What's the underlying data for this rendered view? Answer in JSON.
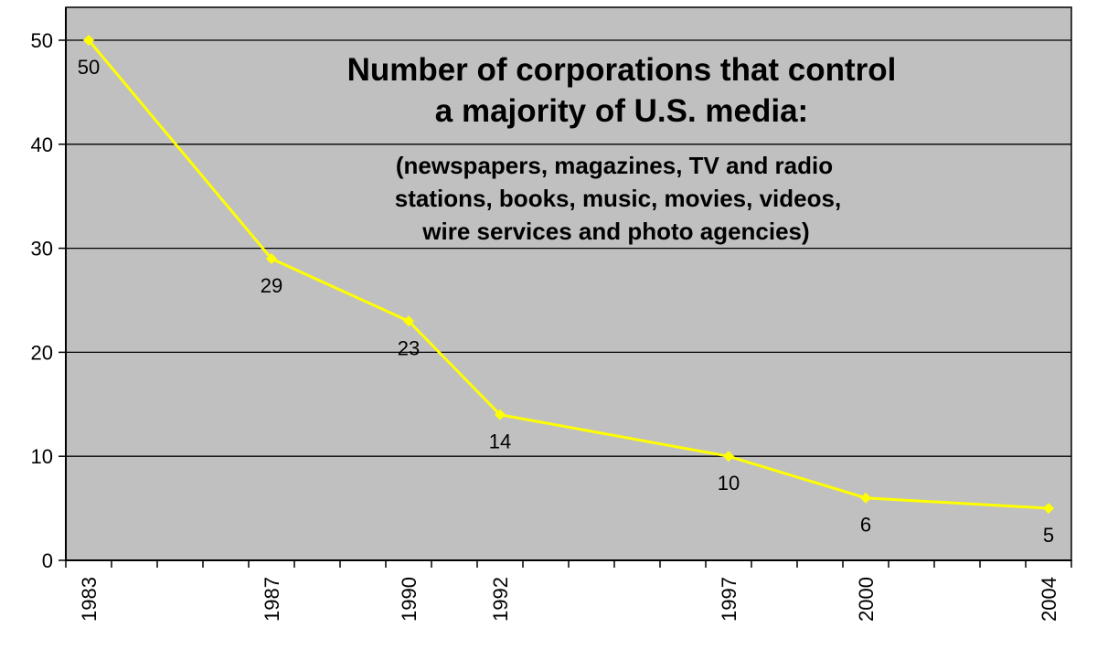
{
  "chart_data": {
    "type": "line",
    "title_lines": [
      "Number of corporations that control",
      "a majority of U.S. media:"
    ],
    "subtitle_lines": [
      "(newspapers, magazines, TV and radio",
      "stations, books, music, movies, videos,",
      "wire services and photo agencies)"
    ],
    "xlabel": "",
    "ylabel": "",
    "x_range": [
      1983,
      2004
    ],
    "ylim": [
      0,
      50
    ],
    "yticks": [
      0,
      10,
      20,
      30,
      40,
      50
    ],
    "grid": true,
    "legend": "none",
    "series": [
      {
        "x": [
          1983,
          1987,
          1990,
          1992,
          1997,
          2000,
          2004
        ],
        "values": [
          50,
          29,
          23,
          14,
          10,
          6,
          5
        ],
        "labels": [
          "50",
          "29",
          "23",
          "14",
          "10",
          "6",
          "5"
        ],
        "color": "#ffff00"
      }
    ],
    "xtick_labels": [
      "1983",
      "1987",
      "1990",
      "1992",
      "1997",
      "2000",
      "2004"
    ],
    "plot_background": "#c0c0c0"
  }
}
